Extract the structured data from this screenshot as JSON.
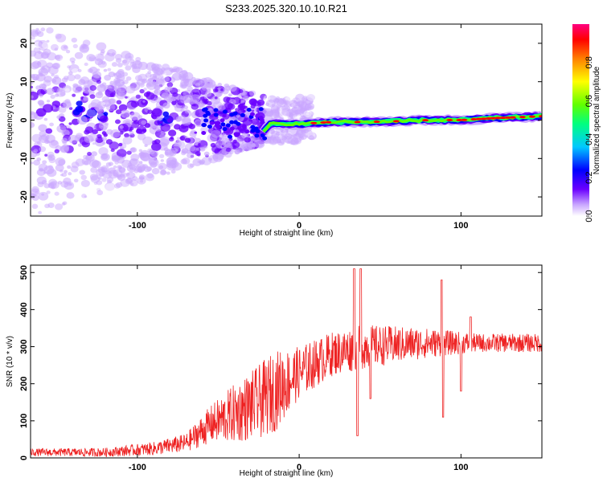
{
  "title": "S233.2025.320.10.10.R21",
  "chart_data": [
    {
      "type": "heatmap",
      "name": "spectrogram",
      "xlabel": "Height of straight line (km)",
      "ylabel": "Frequency (Hz)",
      "xlim": [
        -166,
        150
      ],
      "ylim": [
        -25,
        25
      ],
      "x_ticks": [
        -100,
        0,
        100
      ],
      "y_ticks": [
        -20,
        -10,
        0,
        10,
        20
      ],
      "colorbar": {
        "label": "Normalized spectral amplitude",
        "range": [
          0.0,
          1.0
        ],
        "ticks": [
          0.0,
          0.2,
          0.4,
          0.6,
          0.8
        ],
        "colors": [
          "#ffffff",
          "#c9a6ff",
          "#6a00ff",
          "#0000ff",
          "#00c8ff",
          "#00ff80",
          "#60ff00",
          "#ffff00",
          "#ff8000",
          "#ff0000",
          "#ff0080"
        ]
      },
      "ridge": [
        {
          "x": -22,
          "y": -3.0
        },
        {
          "x": -18,
          "y": -1.0
        },
        {
          "x": 0,
          "y": -1.0
        },
        {
          "x": 20,
          "y": -0.5
        },
        {
          "x": 40,
          "y": -0.5
        },
        {
          "x": 60,
          "y": -0.3
        },
        {
          "x": 80,
          "y": 0.0
        },
        {
          "x": 100,
          "y": 0.0
        },
        {
          "x": 120,
          "y": 0.5
        },
        {
          "x": 150,
          "y": 1.0
        }
      ],
      "noise_region_x": [
        -166,
        -22
      ]
    },
    {
      "type": "line",
      "name": "snr",
      "xlabel": "Height of straight line (km)",
      "ylabel": "SNR (10 * v/v)",
      "xlim": [
        -166,
        150
      ],
      "ylim": [
        0,
        520
      ],
      "x_ticks": [
        -100,
        0,
        100
      ],
      "y_ticks": [
        0,
        100,
        200,
        300,
        400,
        500
      ],
      "color": "#ee2222",
      "envelope": [
        {
          "x": -166,
          "base": 15,
          "amp": 10
        },
        {
          "x": -120,
          "base": 15,
          "amp": 12
        },
        {
          "x": -90,
          "base": 25,
          "amp": 18
        },
        {
          "x": -70,
          "base": 40,
          "amp": 25
        },
        {
          "x": -55,
          "base": 90,
          "amp": 50
        },
        {
          "x": -40,
          "base": 120,
          "amp": 80
        },
        {
          "x": -25,
          "base": 150,
          "amp": 100
        },
        {
          "x": -15,
          "base": 180,
          "amp": 110
        },
        {
          "x": 0,
          "base": 230,
          "amp": 70
        },
        {
          "x": 20,
          "base": 280,
          "amp": 60
        },
        {
          "x": 40,
          "base": 300,
          "amp": 60
        },
        {
          "x": 80,
          "base": 310,
          "amp": 40
        },
        {
          "x": 110,
          "base": 310,
          "amp": 25
        },
        {
          "x": 150,
          "base": 310,
          "amp": 25
        }
      ],
      "spikes": [
        {
          "x": 34,
          "y": 510
        },
        {
          "x": 36,
          "y": 60
        },
        {
          "x": 38,
          "y": 510
        },
        {
          "x": 44,
          "y": 160
        },
        {
          "x": 88,
          "y": 480
        },
        {
          "x": 89,
          "y": 110
        },
        {
          "x": 100,
          "y": 180
        },
        {
          "x": 106,
          "y": 380
        }
      ]
    }
  ]
}
